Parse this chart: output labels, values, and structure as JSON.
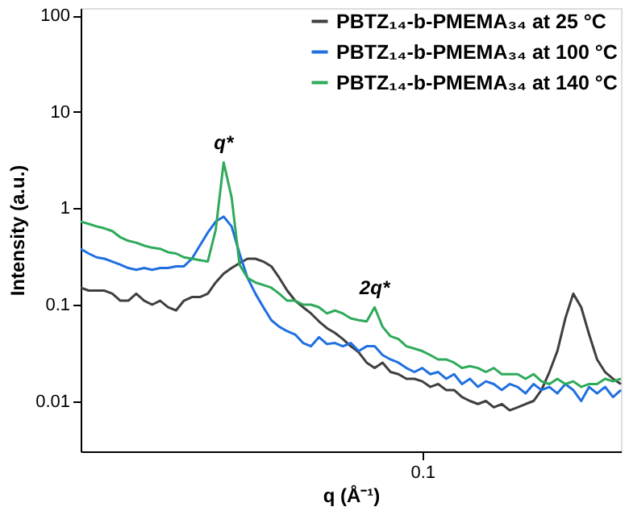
{
  "chart_data": {
    "type": "line",
    "xlabel": "q (Å⁻¹)",
    "ylabel": "Intensity (a.u.)",
    "log": "y",
    "grid": false,
    "legend": "top right",
    "line_style": "solid",
    "marker": "none",
    "ylim": [
      0.003,
      120
    ],
    "yticks": [
      0.01,
      0.1,
      1,
      10,
      100
    ],
    "annotations": [
      "q*",
      "2q*"
    ],
    "categories": [
      null,
      null,
      null,
      null,
      null,
      null,
      null,
      null,
      null,
      null,
      null,
      null,
      null,
      null,
      null,
      null,
      null,
      null,
      null,
      null,
      null,
      null,
      null,
      null,
      null,
      null,
      null,
      null,
      null,
      null,
      null,
      null,
      null,
      null,
      null,
      null,
      null,
      null,
      null,
      null,
      null,
      null,
      null,
      "0.1",
      null,
      null,
      null,
      null,
      null,
      null,
      null,
      null,
      null,
      null,
      null,
      null,
      null,
      null,
      null,
      null,
      null,
      null,
      null,
      null,
      null,
      null,
      null,
      null,
      null
    ],
    "series": [
      {
        "name": "PBTZ₁₄-b-PMEMA₃₄ at 25 °C",
        "color": "#3f3f3f",
        "values": [
          0.15,
          0.14,
          0.14,
          0.14,
          0.13,
          0.11,
          0.11,
          0.13,
          0.11,
          0.1,
          0.11,
          0.094,
          0.087,
          0.11,
          0.12,
          0.12,
          0.13,
          0.17,
          0.21,
          0.24,
          0.27,
          0.3,
          0.3,
          0.28,
          0.25,
          0.19,
          0.14,
          0.11,
          0.094,
          0.081,
          0.067,
          0.057,
          0.051,
          0.044,
          0.037,
          0.032,
          0.025,
          0.022,
          0.025,
          0.02,
          0.019,
          0.017,
          0.017,
          0.016,
          0.014,
          0.015,
          0.013,
          0.013,
          0.011,
          0.01,
          0.0093,
          0.01,
          0.0086,
          0.0093,
          0.008,
          0.0086,
          0.0093,
          0.01,
          0.013,
          0.02,
          0.033,
          0.072,
          0.13,
          0.094,
          0.049,
          0.027,
          0.02,
          0.017,
          0.015
        ]
      },
      {
        "name": "PBTZ₁₄-b-PMEMA₃₄ at 100 °C",
        "color": "#1f6fe0",
        "values": [
          0.38,
          0.34,
          0.31,
          0.3,
          0.28,
          0.26,
          0.24,
          0.23,
          0.24,
          0.23,
          0.24,
          0.24,
          0.25,
          0.25,
          0.3,
          0.41,
          0.56,
          0.73,
          0.82,
          0.65,
          0.34,
          0.19,
          0.13,
          0.094,
          0.069,
          0.059,
          0.053,
          0.049,
          0.04,
          0.037,
          0.046,
          0.039,
          0.04,
          0.037,
          0.04,
          0.033,
          0.037,
          0.037,
          0.03,
          0.027,
          0.025,
          0.022,
          0.02,
          0.022,
          0.019,
          0.02,
          0.017,
          0.019,
          0.015,
          0.017,
          0.014,
          0.016,
          0.015,
          0.013,
          0.015,
          0.014,
          0.012,
          0.015,
          0.013,
          0.014,
          0.012,
          0.015,
          0.013,
          0.01,
          0.014,
          0.012,
          0.014,
          0.011,
          0.013
        ]
      },
      {
        "name": "PBTZ₁₄-b-PMEMA₃₄ at 140 °C",
        "color": "#2eaa5a",
        "values": [
          0.73,
          0.69,
          0.65,
          0.62,
          0.58,
          0.5,
          0.46,
          0.44,
          0.41,
          0.39,
          0.38,
          0.35,
          0.34,
          0.31,
          0.3,
          0.29,
          0.28,
          0.6,
          3.0,
          1.3,
          0.26,
          0.19,
          0.17,
          0.16,
          0.15,
          0.13,
          0.11,
          0.11,
          0.1,
          0.1,
          0.094,
          0.081,
          0.087,
          0.081,
          0.072,
          0.069,
          0.067,
          0.094,
          0.059,
          0.047,
          0.044,
          0.037,
          0.035,
          0.033,
          0.03,
          0.027,
          0.027,
          0.025,
          0.022,
          0.023,
          0.022,
          0.02,
          0.022,
          0.019,
          0.019,
          0.019,
          0.017,
          0.019,
          0.016,
          0.015,
          0.017,
          0.015,
          0.016,
          0.014,
          0.015,
          0.015,
          0.017,
          0.016,
          0.017
        ]
      }
    ]
  }
}
